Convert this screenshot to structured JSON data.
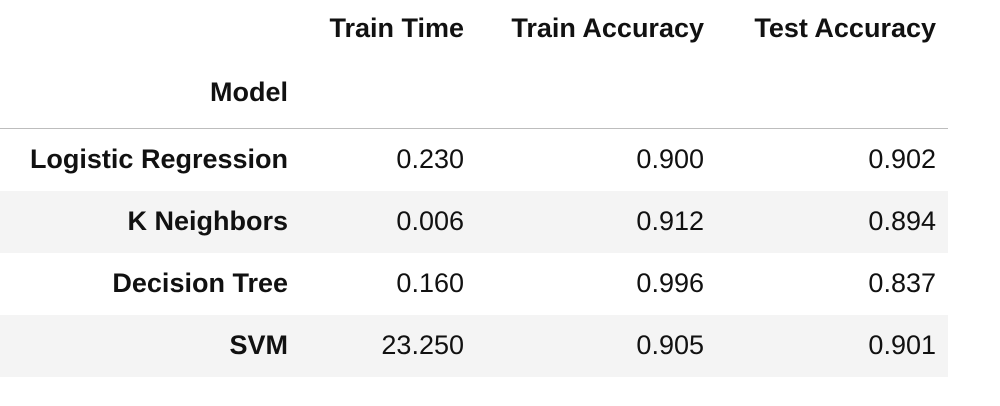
{
  "table": {
    "columns": [
      "Train Time",
      "Train Accuracy",
      "Test Accuracy"
    ],
    "index_name": "Model",
    "rows": [
      {
        "model": "Logistic Regression",
        "train_time": "0.230",
        "train_accuracy": "0.900",
        "test_accuracy": "0.902"
      },
      {
        "model": "K Neighbors",
        "train_time": "0.006",
        "train_accuracy": "0.912",
        "test_accuracy": "0.894"
      },
      {
        "model": "Decision Tree",
        "train_time": "0.160",
        "train_accuracy": "0.996",
        "test_accuracy": "0.837"
      },
      {
        "model": "SVM",
        "train_time": "23.250",
        "train_accuracy": "0.905",
        "test_accuracy": "0.901"
      }
    ]
  },
  "colors": {
    "row_stripe": "#f4f4f4",
    "header_rule": "#bdbdbd",
    "text": "#111111"
  }
}
